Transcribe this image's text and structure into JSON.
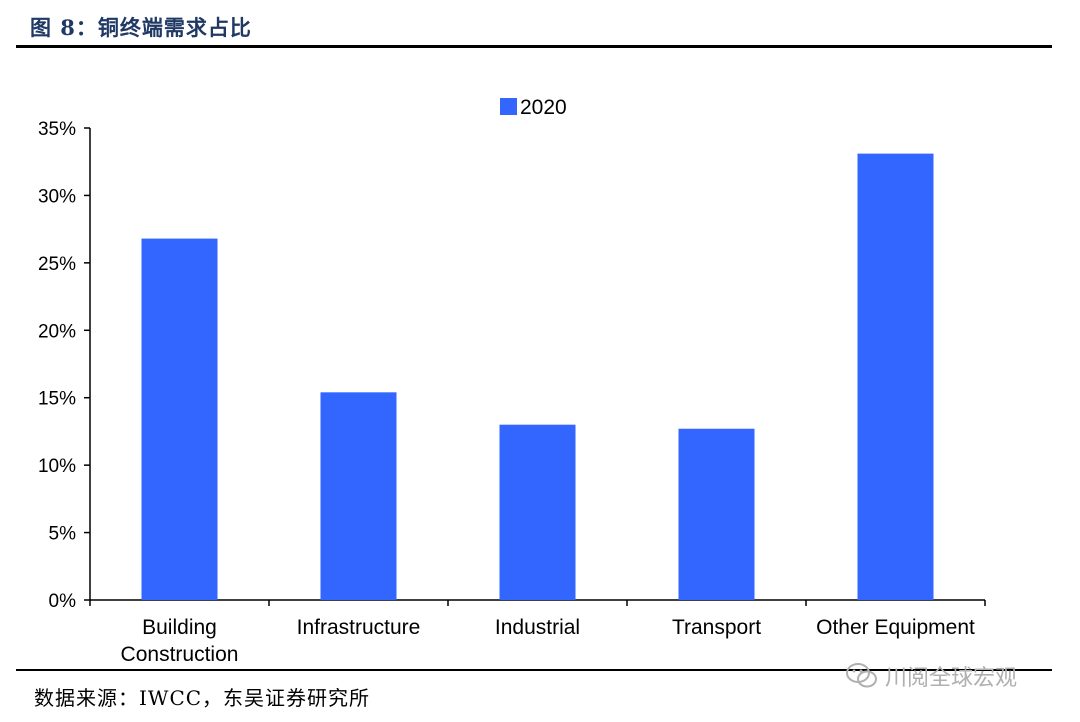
{
  "header": {
    "title": "图 8：铜终端需求占比"
  },
  "footer": {
    "source": "数据来源：IWCC，东吴证券研究所",
    "watermark": "川阅全球宏观"
  },
  "colors": {
    "bar": "#3366ff",
    "rule": "#000000",
    "title": "#1f3864"
  },
  "chart_data": {
    "type": "bar",
    "categories": [
      [
        "Building",
        "Construction"
      ],
      [
        "Infrastructure"
      ],
      [
        "Industrial"
      ],
      [
        "Transport"
      ],
      [
        "Other Equipment"
      ]
    ],
    "series": [
      {
        "name": "2020",
        "values": [
          26.8,
          15.4,
          13.0,
          12.7,
          33.1
        ]
      }
    ],
    "ylim": [
      0,
      35
    ],
    "yticks": [
      0,
      5,
      10,
      15,
      20,
      25,
      30,
      35
    ],
    "ytick_labels": [
      "0%",
      "5%",
      "10%",
      "15%",
      "20%",
      "25%",
      "30%",
      "35%"
    ],
    "legend": "top-center",
    "grid": false
  }
}
